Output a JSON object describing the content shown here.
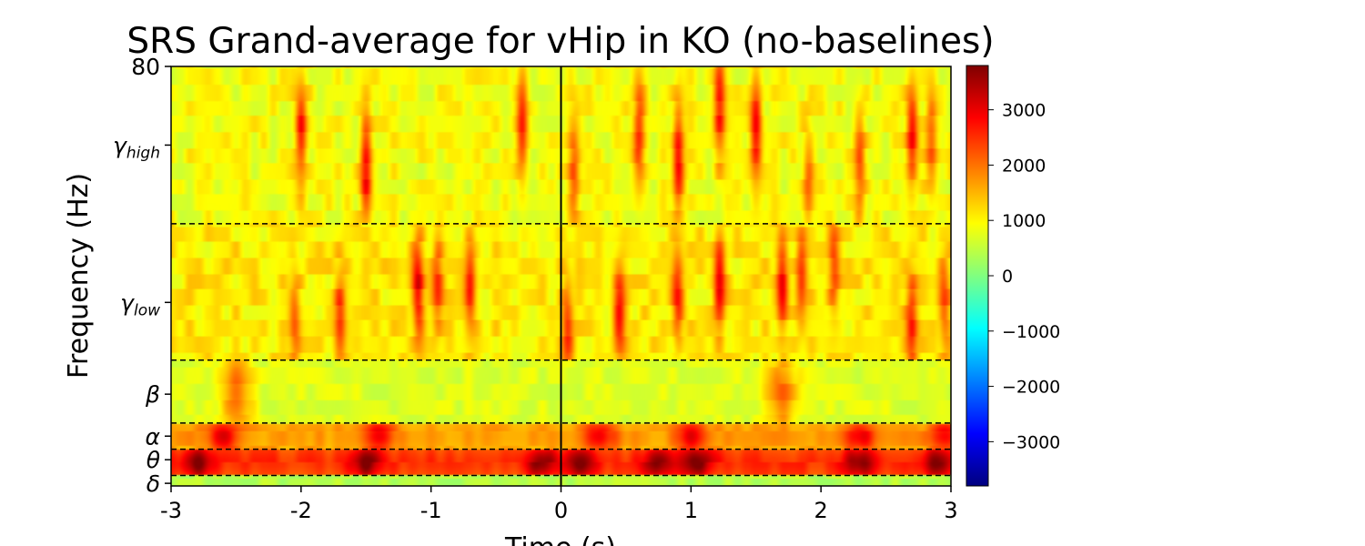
{
  "chart_data": {
    "type": "heatmap",
    "title": "SRS Grand-average for vHip in KO (no-baselines)",
    "xlabel": "Time (s)",
    "ylabel": "Frequency (Hz)",
    "xlim": [
      -3,
      3
    ],
    "ylim": [
      0,
      80
    ],
    "x_ticks": [
      {
        "value": -3,
        "label": "-3"
      },
      {
        "value": -2,
        "label": "-2"
      },
      {
        "value": -1,
        "label": "-1"
      },
      {
        "value": 0,
        "label": "0"
      },
      {
        "value": 1,
        "label": "1"
      },
      {
        "value": 2,
        "label": "2"
      },
      {
        "value": 3,
        "label": "3"
      }
    ],
    "y_ticks": [
      {
        "value": 80,
        "label": "80",
        "sym": "",
        "sub": ""
      },
      {
        "value": 65,
        "label": "γhigh",
        "sym": "γ",
        "sub": "high"
      },
      {
        "value": 35,
        "label": "γlow",
        "sym": "γ",
        "sub": "low"
      },
      {
        "value": 17.5,
        "label": "β",
        "sym": "β",
        "sub": ""
      },
      {
        "value": 9.5,
        "label": "α",
        "sym": "α",
        "sub": ""
      },
      {
        "value": 5,
        "label": "θ",
        "sym": "θ",
        "sub": ""
      },
      {
        "value": 0.5,
        "label": "δ",
        "sym": "δ",
        "sub": ""
      }
    ],
    "band_boundaries_hz": [
      2,
      7,
      12,
      24,
      50
    ],
    "event_line_x": 0,
    "colormap": "jet",
    "colorbar": {
      "vmin": -3800,
      "vmax": 3800,
      "ticks": [
        3000,
        2000,
        1000,
        0,
        -1000,
        -2000,
        -3000
      ],
      "tick_labels": [
        "3000",
        "2000",
        "1000",
        "0",
        "−1000",
        "−2000",
        "−3000"
      ]
    },
    "background_level": 800,
    "bands": [
      {
        "name": "δ",
        "hz": [
          0,
          2
        ],
        "mean": 400
      },
      {
        "name": "θ",
        "hz": [
          2,
          7
        ],
        "mean": 2500,
        "peaks_s": [
          -2.8,
          -1.5,
          -0.15,
          0.15,
          0.75,
          1.05,
          2.3,
          2.9
        ]
      },
      {
        "name": "α",
        "hz": [
          7,
          12
        ],
        "mean": 1700,
        "peaks_s": [
          -2.6,
          -1.4,
          0.3,
          1.0,
          2.3,
          2.95
        ]
      },
      {
        "name": "β",
        "hz": [
          12,
          24
        ],
        "mean": 700,
        "peaks_s": [
          -2.5,
          1.7
        ]
      },
      {
        "name": "γlow",
        "hz": [
          24,
          50
        ],
        "mean": 1100,
        "streaks_s": [
          -2.05,
          -1.7,
          -1.1,
          -0.95,
          -0.7,
          0.05,
          0.45,
          0.9,
          1.22,
          1.7,
          1.85,
          2.1,
          2.7,
          2.95
        ]
      },
      {
        "name": "γhigh",
        "hz": [
          50,
          80
        ],
        "mean": 900,
        "streaks_s": [
          -2.0,
          -1.5,
          -0.3,
          0.1,
          0.6,
          0.9,
          1.22,
          1.5,
          1.9,
          2.3,
          2.7,
          2.85
        ]
      }
    ]
  }
}
